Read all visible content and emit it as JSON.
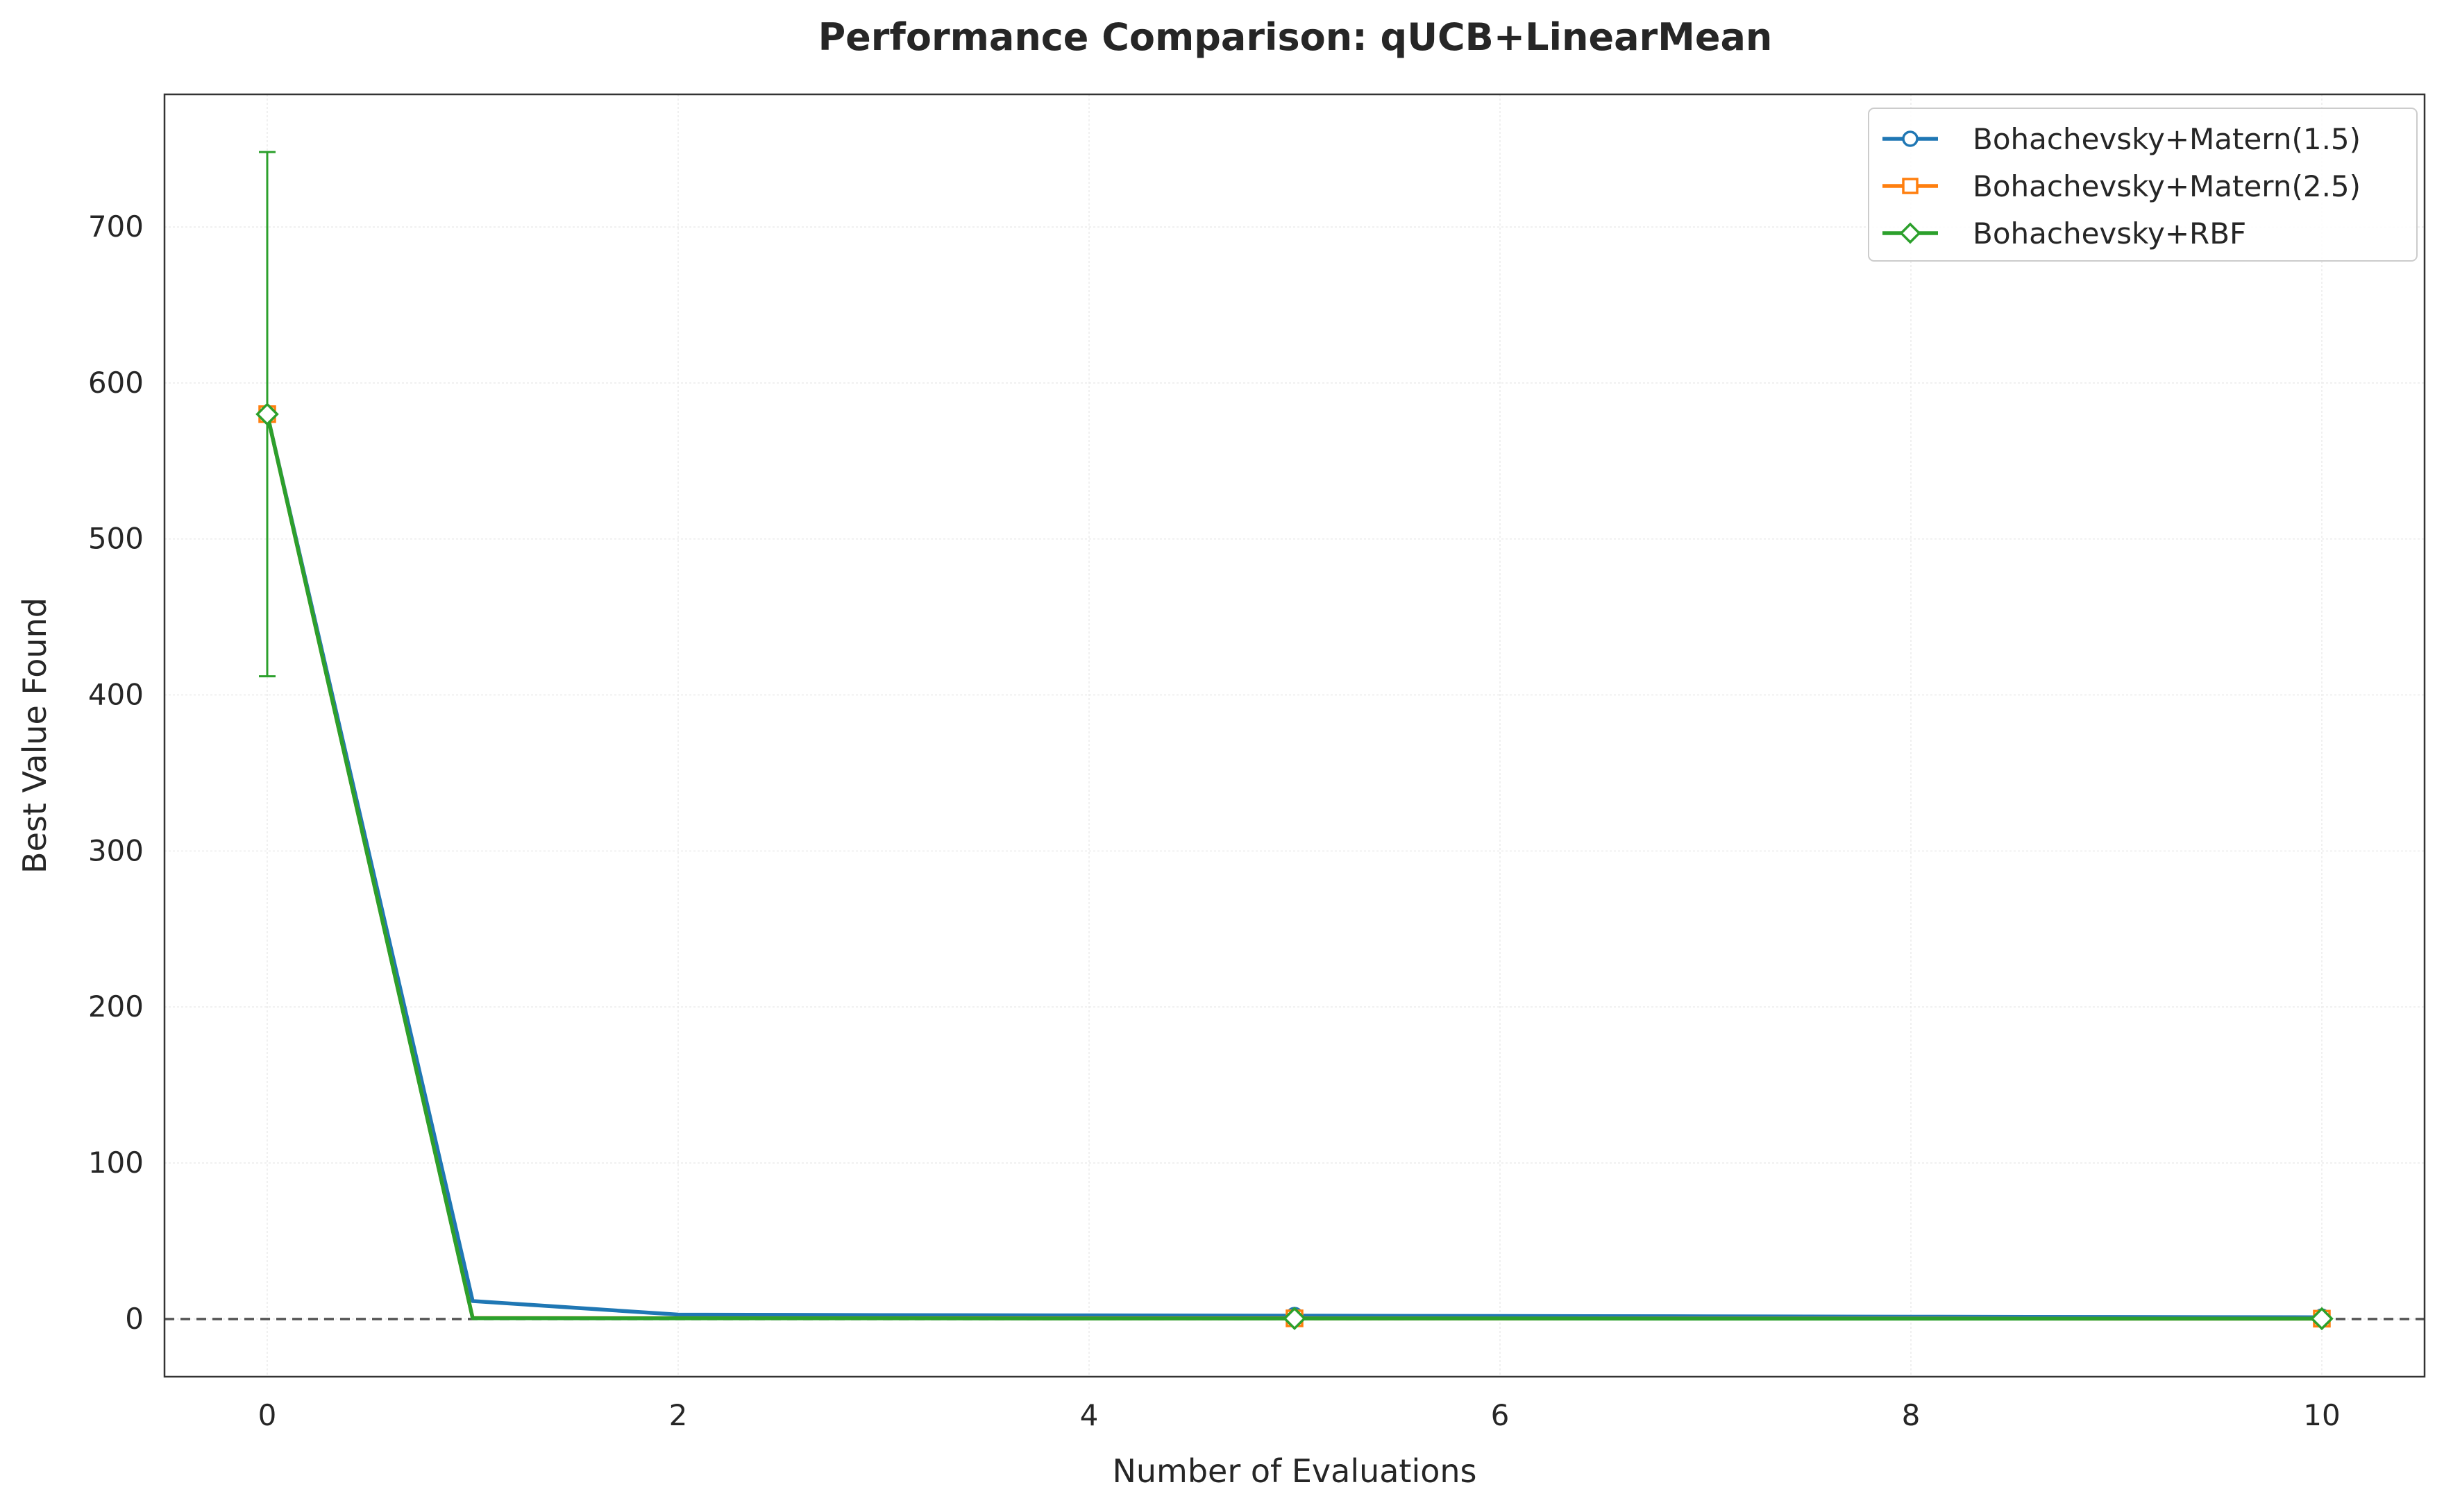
{
  "chart_data": {
    "type": "line",
    "title": "Performance Comparison: qUCB+LinearMean",
    "xlabel": "Number of Evaluations",
    "ylabel": "Best Value Found",
    "xlim": [
      -0.5,
      10.5
    ],
    "ylim": [
      -37,
      785
    ],
    "xticks": [
      0,
      2,
      4,
      6,
      8,
      10
    ],
    "yticks": [
      0,
      100,
      200,
      300,
      400,
      500,
      600,
      700
    ],
    "grid": true,
    "legend_position": "top-right",
    "reference_line": {
      "y": 0,
      "style": "dashed",
      "color": "#555555"
    },
    "series": [
      {
        "name": "Bohachevsky+Matern(1.5)",
        "color": "#1f77b4",
        "marker": "circle",
        "x": [
          0,
          1,
          2,
          3,
          4,
          5,
          6,
          7,
          8,
          9,
          10
        ],
        "y": [
          580,
          11.5,
          2.8,
          2.5,
          2.3,
          2.1,
          1.9,
          1.7,
          1.5,
          1.3,
          1.1
        ],
        "marker_x": [
          0,
          5,
          10
        ],
        "errorbars": []
      },
      {
        "name": "Bohachevsky+Matern(2.5)",
        "color": "#ff7f0e",
        "marker": "square",
        "x": [
          0,
          1,
          2,
          3,
          4,
          5,
          6,
          7,
          8,
          9,
          10
        ],
        "y": [
          580,
          0.6,
          0.5,
          0.5,
          0.4,
          0.4,
          0.3,
          0.3,
          0.3,
          0.2,
          0.2
        ],
        "marker_x": [
          0,
          5,
          10
        ],
        "errorbars": []
      },
      {
        "name": "Bohachevsky+RBF",
        "color": "#2ca02c",
        "marker": "diamond",
        "x": [
          0,
          1,
          2,
          3,
          4,
          5,
          6,
          7,
          8,
          9,
          10
        ],
        "y": [
          580,
          0.5,
          0.4,
          0.4,
          0.3,
          0.3,
          0.3,
          0.2,
          0.2,
          0.2,
          0.2
        ],
        "marker_x": [
          0,
          5,
          10
        ],
        "errorbars": [
          {
            "x": 0,
            "low": 412,
            "high": 748
          }
        ]
      }
    ]
  }
}
